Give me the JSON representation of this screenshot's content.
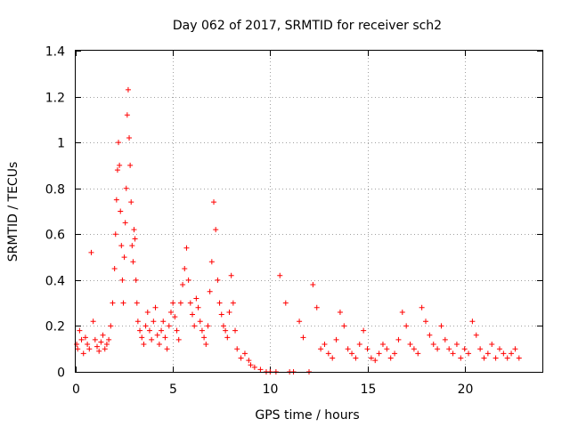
{
  "chart_data": {
    "type": "scatter",
    "title": "Day 062 of 2017, SRMTID for receiver sch2",
    "xlabel": "GPS time / hours",
    "ylabel": "SRMTID / TECUs",
    "xlim": [
      0,
      24
    ],
    "ylim": [
      0,
      1.4
    ],
    "xticks": [
      0,
      5,
      10,
      15,
      20
    ],
    "xtick_labels": [
      "0",
      "5",
      "10",
      "15",
      "20"
    ],
    "yticks": [
      0,
      0.2,
      0.4,
      0.6,
      0.8,
      1,
      1.2,
      1.4
    ],
    "ytick_labels": [
      "0",
      "0.2",
      "0.4",
      "0.6",
      "0.8",
      "1",
      "1.2",
      "1.4"
    ],
    "grid": true,
    "marker": "plus",
    "color": "#ff0000",
    "series": [
      {
        "name": "sch2",
        "x": [
          0.05,
          0.1,
          0.2,
          0.3,
          0.4,
          0.5,
          0.6,
          0.7,
          0.8,
          0.9,
          1.0,
          1.1,
          1.2,
          1.3,
          1.4,
          1.5,
          1.6,
          1.7,
          1.8,
          1.9,
          2.0,
          2.05,
          2.1,
          2.15,
          2.2,
          2.25,
          2.3,
          2.35,
          2.4,
          2.45,
          2.5,
          2.55,
          2.6,
          2.65,
          2.7,
          2.75,
          2.8,
          2.85,
          2.9,
          2.95,
          3.0,
          3.05,
          3.1,
          3.15,
          3.2,
          3.3,
          3.4,
          3.5,
          3.6,
          3.7,
          3.8,
          3.9,
          4.0,
          4.1,
          4.2,
          4.3,
          4.4,
          4.5,
          4.6,
          4.7,
          4.8,
          4.9,
          5.0,
          5.1,
          5.2,
          5.3,
          5.4,
          5.5,
          5.6,
          5.7,
          5.8,
          5.9,
          6.0,
          6.1,
          6.2,
          6.3,
          6.4,
          6.5,
          6.6,
          6.7,
          6.8,
          6.9,
          7.0,
          7.1,
          7.2,
          7.3,
          7.4,
          7.5,
          7.6,
          7.7,
          7.8,
          7.9,
          8.0,
          8.1,
          8.2,
          8.3,
          8.5,
          8.7,
          8.9,
          9.0,
          9.2,
          9.5,
          9.8,
          10.0,
          10.3,
          10.5,
          10.8,
          11.0,
          11.2,
          11.5,
          11.7,
          12.0,
          12.2,
          12.4,
          12.6,
          12.8,
          13.0,
          13.2,
          13.4,
          13.6,
          13.8,
          14.0,
          14.2,
          14.4,
          14.6,
          14.8,
          15.0,
          15.2,
          15.4,
          15.6,
          15.8,
          16.0,
          16.2,
          16.4,
          16.6,
          16.8,
          17.0,
          17.2,
          17.4,
          17.6,
          17.8,
          18.0,
          18.2,
          18.4,
          18.6,
          18.8,
          19.0,
          19.2,
          19.4,
          19.6,
          19.8,
          20.0,
          20.2,
          20.4,
          20.6,
          20.8,
          21.0,
          21.2,
          21.4,
          21.6,
          21.8,
          22.0,
          22.2,
          22.4,
          22.6,
          22.8
        ],
        "y": [
          0.12,
          0.1,
          0.18,
          0.14,
          0.08,
          0.15,
          0.12,
          0.1,
          0.52,
          0.22,
          0.14,
          0.11,
          0.09,
          0.13,
          0.16,
          0.1,
          0.12,
          0.14,
          0.2,
          0.3,
          0.45,
          0.6,
          0.75,
          0.88,
          1.0,
          0.9,
          0.7,
          0.55,
          0.4,
          0.3,
          0.5,
          0.65,
          0.8,
          1.12,
          1.23,
          1.02,
          0.9,
          0.74,
          0.55,
          0.48,
          0.62,
          0.58,
          0.4,
          0.3,
          0.22,
          0.18,
          0.15,
          0.12,
          0.2,
          0.26,
          0.18,
          0.14,
          0.22,
          0.28,
          0.16,
          0.12,
          0.18,
          0.22,
          0.15,
          0.1,
          0.2,
          0.26,
          0.3,
          0.24,
          0.18,
          0.14,
          0.3,
          0.38,
          0.45,
          0.54,
          0.4,
          0.3,
          0.25,
          0.2,
          0.32,
          0.28,
          0.22,
          0.18,
          0.15,
          0.12,
          0.2,
          0.35,
          0.48,
          0.74,
          0.62,
          0.4,
          0.3,
          0.25,
          0.2,
          0.18,
          0.15,
          0.26,
          0.42,
          0.3,
          0.18,
          0.1,
          0.06,
          0.08,
          0.05,
          0.03,
          0.02,
          0.01,
          0.0,
          0.0,
          0.0,
          0.42,
          0.3,
          0.0,
          0.0,
          0.22,
          0.15,
          0.0,
          0.38,
          0.28,
          0.1,
          0.12,
          0.08,
          0.06,
          0.14,
          0.26,
          0.2,
          0.1,
          0.08,
          0.06,
          0.12,
          0.18,
          0.1,
          0.06,
          0.05,
          0.08,
          0.12,
          0.1,
          0.06,
          0.08,
          0.14,
          0.26,
          0.2,
          0.12,
          0.1,
          0.08,
          0.28,
          0.22,
          0.16,
          0.12,
          0.1,
          0.2,
          0.14,
          0.1,
          0.08,
          0.12,
          0.06,
          0.1,
          0.08,
          0.22,
          0.16,
          0.1,
          0.06,
          0.08,
          0.12,
          0.06,
          0.1,
          0.08,
          0.06,
          0.08,
          0.1,
          0.06
        ]
      }
    ]
  }
}
